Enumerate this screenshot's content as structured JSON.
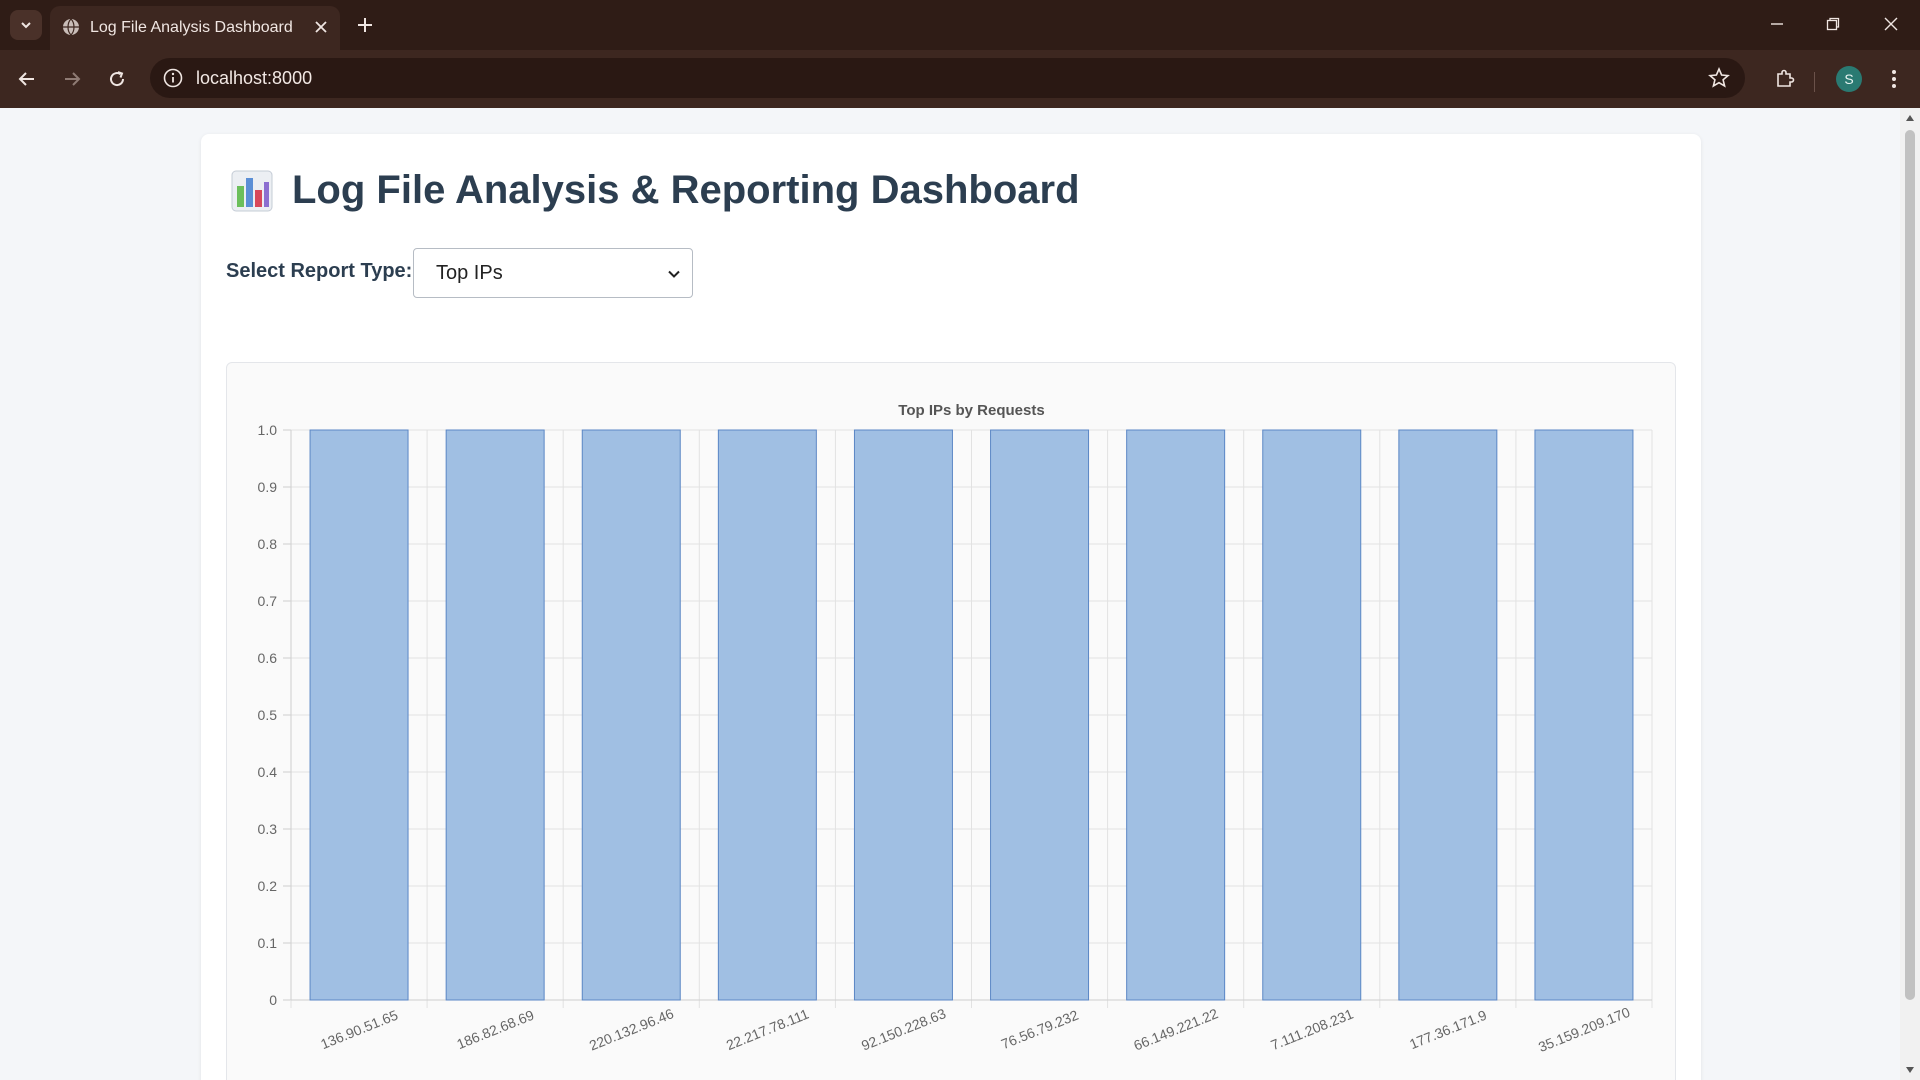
{
  "browser": {
    "tab_title": "Log File Analysis Dashboard",
    "url": "localhost:8000",
    "profile_initial": "S"
  },
  "page": {
    "title": "Log File Analysis & Reporting Dashboard",
    "heading_icon": "bar-chart-icon",
    "select_label": "Select Report Type:",
    "select_value": "Top IPs"
  },
  "colors": {
    "bar_fill": "#a0bfe3",
    "bar_stroke": "#5b87c5",
    "title_text": "#2c3e50"
  },
  "chart_data": {
    "type": "bar",
    "title": "Top IPs by Requests",
    "xlabel": "",
    "ylabel": "",
    "categories": [
      "136.90.51.65",
      "186.82.68.69",
      "220.132.96.46",
      "22.217.78.111",
      "92.150.228.63",
      "76.56.79.232",
      "66.149.221.22",
      "7.111.208.231",
      "177.36.171.9",
      "35.159.209.170"
    ],
    "values": [
      1,
      1,
      1,
      1,
      1,
      1,
      1,
      1,
      1,
      1
    ],
    "ylim": [
      0,
      1.0
    ],
    "yticks": [
      "0",
      "0.1",
      "0.2",
      "0.3",
      "0.4",
      "0.5",
      "0.6",
      "0.7",
      "0.8",
      "0.9",
      "1.0"
    ],
    "grid": true,
    "legend": "none"
  }
}
